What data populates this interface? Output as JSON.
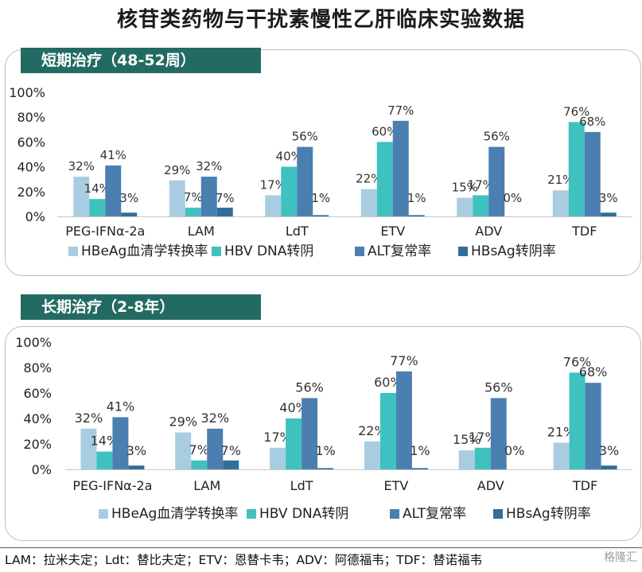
{
  "page": {
    "title": "核苷类药物与干扰素慢性乙肝临床实验数据",
    "footnote": "LAM：拉米夫定；Ldt：替比夫定；ETV：恩替卡韦；ADV：阿德福韦；TDF：替诺福韦",
    "watermark": "格隆汇"
  },
  "colors": {
    "series": [
      "#a9cde0",
      "#3fc1c0",
      "#4a7fb0",
      "#2f6f99"
    ],
    "tab": "#236b62"
  },
  "chart_data": [
    {
      "type": "bar",
      "title": "短期治疗（48-52周）",
      "categories": [
        "PEG-IFNα-2a",
        "LAM",
        "LdT",
        "ETV",
        "ADV",
        "TDF"
      ],
      "ylim": [
        0,
        100
      ],
      "yticks": [
        "0%",
        "20%",
        "40%",
        "60%",
        "80%",
        "100%"
      ],
      "legend_position": "bottom",
      "series": [
        {
          "name": "HBeAg血清学转换率",
          "values": [
            32,
            29,
            17,
            22,
            15,
            21
          ],
          "labels": [
            "32%",
            "29%",
            "17%",
            "22%",
            "15%",
            "21%"
          ]
        },
        {
          "name": "HBV DNA转阴",
          "values": [
            14,
            7,
            40,
            60,
            17,
            76
          ],
          "labels": [
            "14%",
            "7%",
            "40%",
            "60%",
            "17%",
            "76%"
          ]
        },
        {
          "name": "ALT复常率",
          "values": [
            41,
            32,
            56,
            77,
            56,
            68
          ],
          "labels": [
            "41%",
            "32%",
            "56%",
            "77%",
            "56%",
            "68%"
          ]
        },
        {
          "name": "HBsAg转阴率",
          "values": [
            3,
            7,
            1,
            1,
            0,
            3
          ],
          "labels": [
            "3%",
            "7%",
            "1%",
            "1%",
            "0%",
            "3%"
          ]
        }
      ]
    },
    {
      "type": "bar",
      "title": "长期治疗（2-8年）",
      "categories": [
        "PEG-IFNα-2a",
        "LAM",
        "LdT",
        "ETV",
        "ADV",
        "TDF"
      ],
      "ylim": [
        0,
        100
      ],
      "yticks": [
        "0%",
        "20%",
        "40%",
        "60%",
        "80%",
        "100%"
      ],
      "legend_position": "bottom",
      "series": [
        {
          "name": "HBeAg血清学转换率",
          "values": [
            32,
            29,
            17,
            22,
            15,
            21
          ],
          "labels": [
            "32%",
            "29%",
            "17%",
            "22%",
            "15%",
            "21%"
          ]
        },
        {
          "name": "HBV DNA转阴",
          "values": [
            14,
            7,
            40,
            60,
            17,
            76
          ],
          "labels": [
            "14%",
            "7%",
            "40%",
            "60%",
            "17%",
            "76%"
          ]
        },
        {
          "name": "ALT复常率",
          "values": [
            41,
            32,
            56,
            77,
            56,
            68
          ],
          "labels": [
            "41%",
            "32%",
            "56%",
            "77%",
            "56%",
            "68%"
          ]
        },
        {
          "name": "HBsAg转阴率",
          "values": [
            3,
            7,
            1,
            1,
            0,
            3
          ],
          "labels": [
            "3%",
            "7%",
            "1%",
            "1%",
            "0%",
            "3%"
          ]
        }
      ]
    }
  ]
}
